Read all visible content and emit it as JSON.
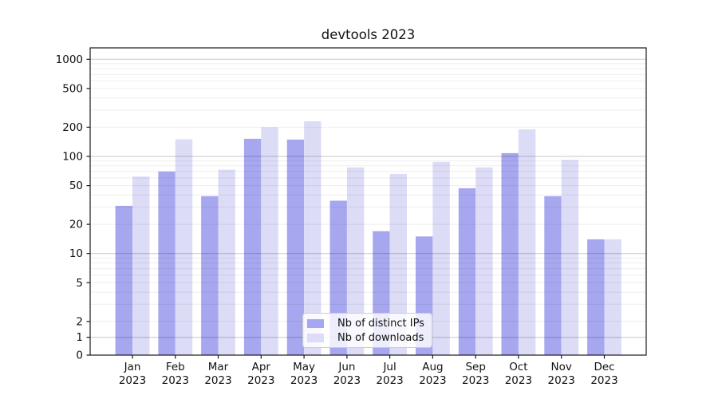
{
  "chart_data": {
    "type": "bar",
    "title": "devtools 2023",
    "categories": [
      "Jan",
      "Feb",
      "Mar",
      "Apr",
      "May",
      "Jun",
      "Jul",
      "Aug",
      "Sep",
      "Oct",
      "Nov",
      "Dec"
    ],
    "category_year": "2023",
    "series": [
      {
        "name": "Nb of distinct IPs",
        "color": "#a7a7f0",
        "values": [
          31,
          70,
          39,
          152,
          149,
          35,
          17,
          15,
          47,
          108,
          39,
          14
        ]
      },
      {
        "name": "Nb of downloads",
        "color": "#dcdcf7",
        "values": [
          62,
          150,
          73,
          200,
          230,
          77,
          66,
          88,
          77,
          190,
          92,
          14
        ]
      }
    ],
    "xlabel": "",
    "ylabel": "",
    "yscale": "symlog",
    "ylim": [
      0,
      1000
    ],
    "ytick_labels": [
      0,
      1,
      2,
      5,
      10,
      20,
      50,
      100,
      200,
      500,
      1000
    ],
    "grid": "on",
    "legend_position": "lower-center-inside",
    "style": {
      "major_grid_color": "rgba(0,0,0,0.22)",
      "minor_grid_color": "rgba(0,0,0,0.065)",
      "axis_color": "#1a1a1a",
      "text_color": "#111111",
      "background": "#ffffff"
    }
  }
}
